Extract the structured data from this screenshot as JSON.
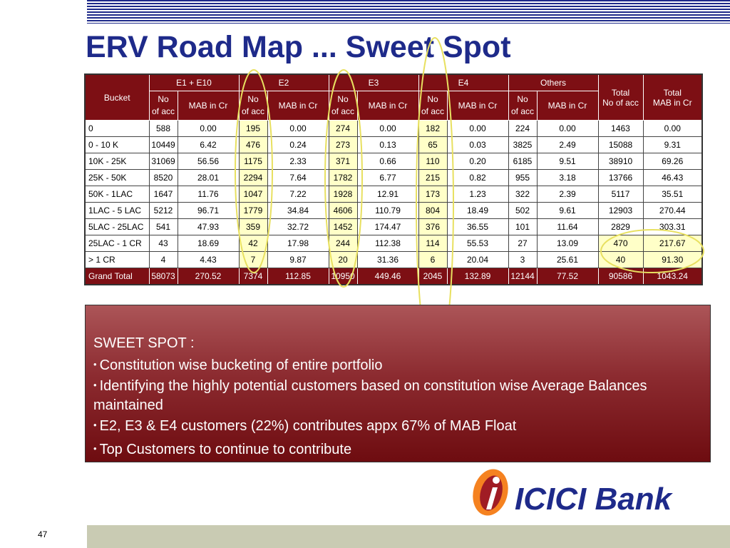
{
  "title": "ERV Road Map ... Sweet Spot",
  "table": {
    "bucket_header": "Bucket",
    "groups": [
      "E1 + E10",
      "E2",
      "E3",
      "E4",
      "Others"
    ],
    "total_acc_header": [
      "Total",
      "No of acc"
    ],
    "total_mab_header": [
      "Total",
      "MAB in Cr"
    ],
    "sub_no": [
      "No",
      "of acc"
    ],
    "sub_mab": "MAB in Cr",
    "rows": [
      {
        "bucket": "0",
        "values": [
          "588",
          "0.00",
          "195",
          "0.00",
          "274",
          "0.00",
          "182",
          "0.00",
          "224",
          "0.00",
          "1463",
          "0.00"
        ]
      },
      {
        "bucket": "0 - 10 K",
        "values": [
          "10449",
          "6.42",
          "476",
          "0.24",
          "273",
          "0.13",
          "65",
          "0.03",
          "3825",
          "2.49",
          "15088",
          "9.31"
        ]
      },
      {
        "bucket": "10K - 25K",
        "values": [
          "31069",
          "56.56",
          "1175",
          "2.33",
          "371",
          "0.66",
          "110",
          "0.20",
          "6185",
          "9.51",
          "38910",
          "69.26"
        ]
      },
      {
        "bucket": "25K - 50K",
        "values": [
          "8520",
          "28.01",
          "2294",
          "7.64",
          "1782",
          "6.77",
          "215",
          "0.82",
          "955",
          "3.18",
          "13766",
          "46.43"
        ]
      },
      {
        "bucket": "50K - 1LAC",
        "values": [
          "1647",
          "11.76",
          "1047",
          "7.22",
          "1928",
          "12.91",
          "173",
          "1.23",
          "322",
          "2.39",
          "5117",
          "35.51"
        ]
      },
      {
        "bucket": "1LAC - 5 LAC",
        "values": [
          "5212",
          "96.71",
          "1779",
          "34.84",
          "4606",
          "110.79",
          "804",
          "18.49",
          "502",
          "9.61",
          "12903",
          "270.44"
        ]
      },
      {
        "bucket": "5LAC - 25LAC",
        "values": [
          "541",
          "47.93",
          "359",
          "32.72",
          "1452",
          "174.47",
          "376",
          "36.55",
          "101",
          "11.64",
          "2829",
          "303.31"
        ]
      },
      {
        "bucket": "25LAC - 1 CR",
        "values": [
          "43",
          "18.69",
          "42",
          "17.98",
          "244",
          "112.38",
          "114",
          "55.53",
          "27",
          "13.09",
          "470",
          "217.67"
        ]
      },
      {
        "bucket": ">  1 CR",
        "values": [
          "4",
          "4.43",
          "7",
          "9.87",
          "20",
          "31.36",
          "6",
          "20.04",
          "3",
          "25.61",
          "40",
          "91.30"
        ]
      }
    ],
    "grand_total": {
      "bucket": "Grand Total",
      "values": [
        "58073",
        "270.52",
        "7374",
        "112.85",
        "10950",
        "449.46",
        "2045",
        "132.89",
        "12144",
        "77.52",
        "90586",
        "1043.24"
      ]
    }
  },
  "sweet_spot": {
    "heading": "SWEET SPOT :",
    "bullet_char": "•",
    "items": [
      "Constitution wise bucketing of entire portfolio",
      "Identifying the highly potential customers based on constitution wise Average Balances maintained",
      "E2, E3 & E4 customers (22%) contributes appx 67% of  MAB Float",
      "Top Customers to continue to contribute"
    ]
  },
  "logo": {
    "text": "ICICI Bank",
    "accent_orange": "#f58220",
    "brand_red": "#a01c24",
    "brand_blue": "#1e2a8a"
  },
  "page_number": "47",
  "colors": {
    "title": "#1e2a8a",
    "header_bg": "#7d0f14",
    "highlight": "#ffffc8",
    "oval": "#e8e060"
  }
}
